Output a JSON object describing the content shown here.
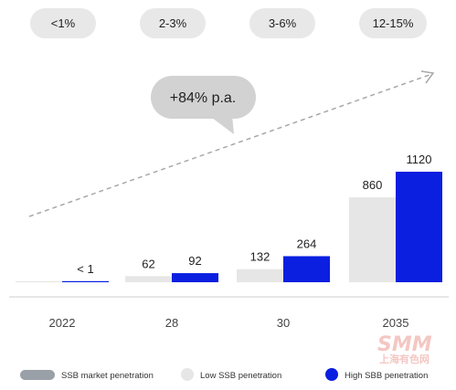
{
  "penetration_pills": [
    "<1%",
    "2-3%",
    "3-6%",
    "12-15%"
  ],
  "growth_bubble": "+84% p.a.",
  "chart_data": {
    "type": "bar",
    "categories": [
      "2022",
      "28",
      "30",
      "2035"
    ],
    "series": [
      {
        "name": "Low SSB penetration",
        "values": [
          1,
          62,
          132,
          860
        ],
        "labels": [
          "",
          "62",
          "132",
          "860"
        ],
        "color": "#e6e6e6"
      },
      {
        "name": "High SBB penetration",
        "values": [
          1,
          92,
          264,
          1120
        ],
        "labels": [
          "< 1",
          "92",
          "264",
          "1120"
        ],
        "color": "#0a1fe0"
      }
    ],
    "ylim": [
      0,
      1200
    ],
    "grid": false,
    "legend_position": "bottom"
  },
  "legend": {
    "market": "SSB market penetration",
    "low": "Low SSB penetration",
    "high": "High SBB penetration",
    "market_color": "#9aa0a8",
    "low_color": "#e6e6e6",
    "high_color": "#0a1fe0"
  },
  "watermark": {
    "big": "SMM",
    "small": "上海有色网"
  }
}
